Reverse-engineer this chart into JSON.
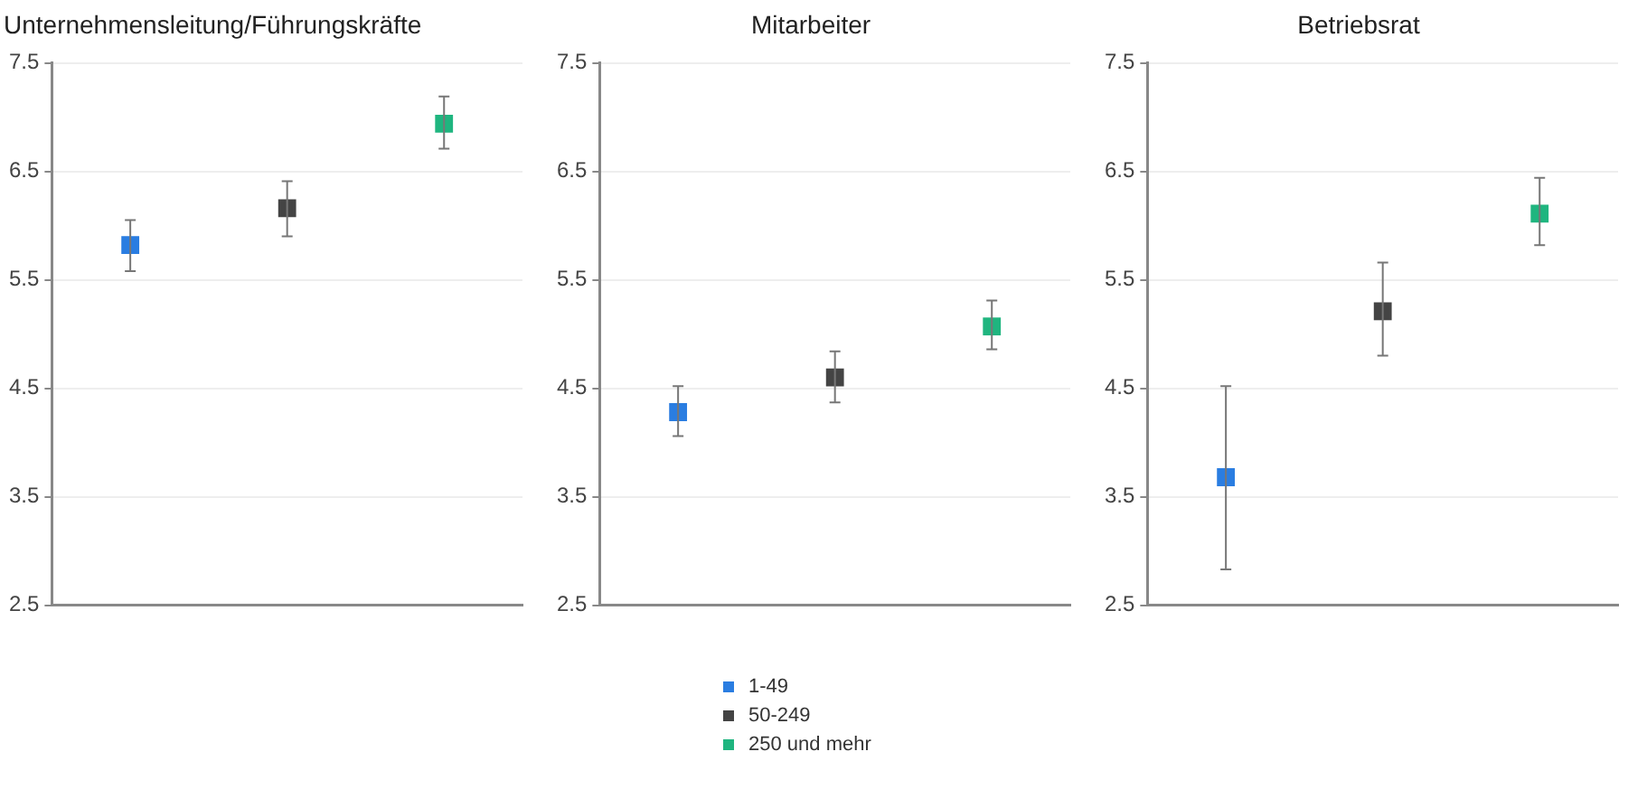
{
  "chart_data": [
    {
      "type": "scatter",
      "title": "Unternehmensleitung/Führungskräfte",
      "categories": [
        null,
        null,
        null
      ],
      "ylim": [
        2.5,
        7.5
      ],
      "yticks": [
        2.5,
        3.5,
        4.5,
        5.5,
        6.5,
        7.5
      ],
      "grid": "y",
      "tick_labels": "y",
      "marker": "square",
      "legend": false,
      "series": [
        {
          "color": "#2a7de1",
          "values": [
            5.82,
            null,
            null
          ],
          "errors": [
            [
              5.58,
              6.05
            ],
            null,
            null
          ]
        },
        {
          "color": "#444444",
          "values": [
            null,
            6.16,
            null
          ],
          "errors": [
            null,
            [
              5.9,
              6.41
            ],
            null
          ]
        },
        {
          "color": "#1fb57f",
          "values": [
            null,
            null,
            6.94
          ],
          "errors": [
            null,
            null,
            [
              6.71,
              7.19
            ]
          ]
        }
      ]
    },
    {
      "type": "scatter",
      "title": "Mitarbeiter",
      "categories": [
        null,
        null,
        null
      ],
      "ylim": [
        2.5,
        7.5
      ],
      "yticks": [
        2.5,
        3.5,
        4.5,
        5.5,
        6.5,
        7.5
      ],
      "grid": "y",
      "tick_labels": "y",
      "marker": "square",
      "legend": "bottom",
      "series": [
        {
          "name": "1-49",
          "color": "#2a7de1",
          "values": [
            4.28,
            null,
            null
          ],
          "errors": [
            [
              4.06,
              4.52
            ],
            null,
            null
          ]
        },
        {
          "name": "50-249",
          "color": "#444444",
          "values": [
            null,
            4.6,
            null
          ],
          "errors": [
            null,
            [
              4.37,
              4.84
            ],
            null
          ]
        },
        {
          "name": "250 und mehr",
          "color": "#1fb57f",
          "values": [
            null,
            null,
            5.07
          ],
          "errors": [
            null,
            null,
            [
              4.86,
              5.31
            ]
          ]
        }
      ]
    },
    {
      "type": "scatter",
      "title": "Betriebsrat",
      "categories": [
        null,
        null,
        null
      ],
      "ylim": [
        2.5,
        7.5
      ],
      "yticks": [
        2.5,
        3.5,
        4.5,
        5.5,
        6.5,
        7.5
      ],
      "grid": "y",
      "tick_labels": "y",
      "marker": "square",
      "legend": false,
      "series": [
        {
          "color": "#2a7de1",
          "values": [
            3.68,
            null,
            null
          ],
          "errors": [
            [
              2.83,
              4.52
            ],
            null,
            null
          ]
        },
        {
          "color": "#444444",
          "values": [
            null,
            5.21,
            null
          ],
          "errors": [
            null,
            [
              4.8,
              5.66
            ],
            null
          ]
        },
        {
          "color": "#1fb57f",
          "values": [
            null,
            null,
            6.11
          ],
          "errors": [
            null,
            null,
            [
              5.82,
              6.44
            ]
          ]
        }
      ]
    }
  ]
}
